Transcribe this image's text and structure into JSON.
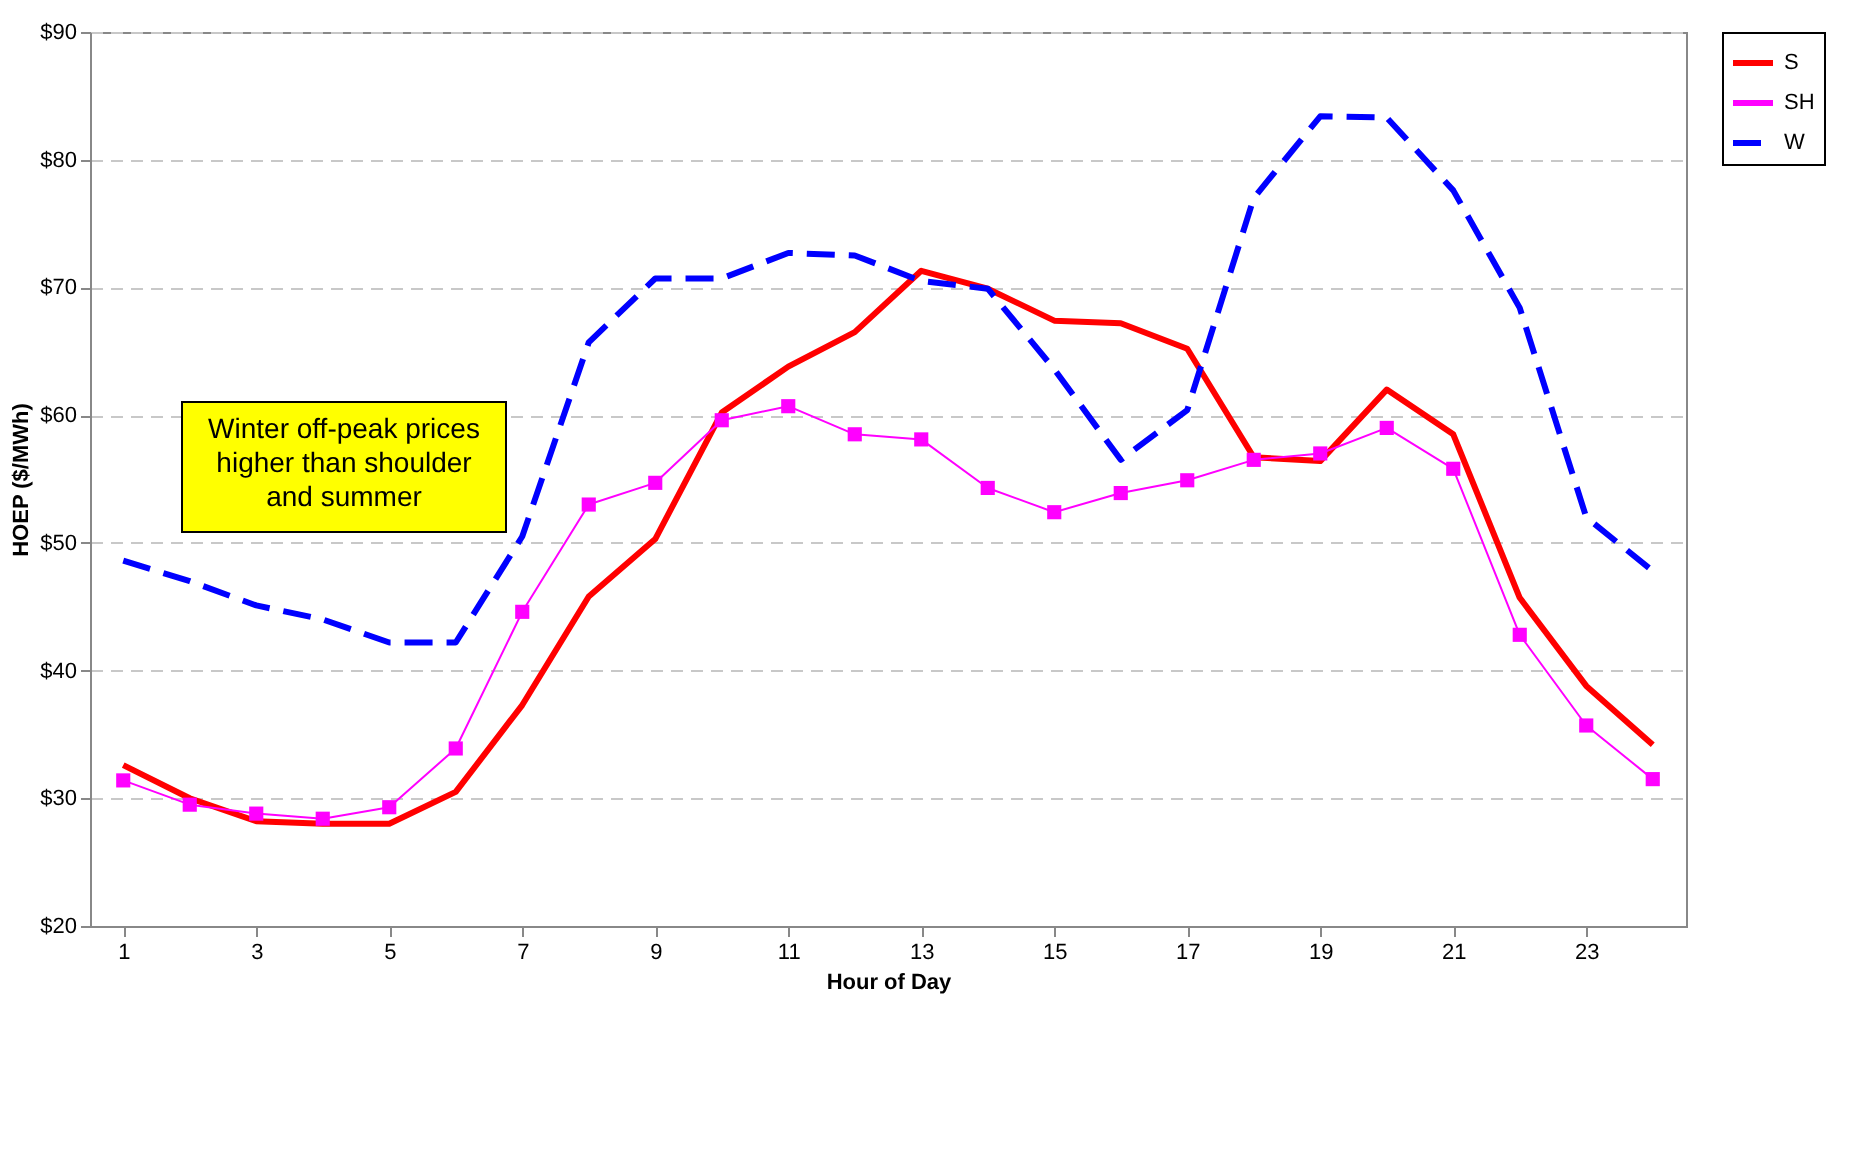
{
  "chart_data": {
    "type": "line",
    "xlabel": "Hour of Day",
    "ylabel": "HOEP ($/MWh)",
    "x": [
      1,
      2,
      3,
      4,
      5,
      6,
      7,
      8,
      9,
      10,
      11,
      12,
      13,
      14,
      15,
      16,
      17,
      18,
      19,
      20,
      21,
      22,
      23,
      24
    ],
    "xlim": [
      0.5,
      24.5
    ],
    "xticks": [
      1,
      3,
      5,
      7,
      9,
      11,
      13,
      15,
      17,
      19,
      21,
      23
    ],
    "series": [
      {
        "name": "S",
        "color": "#ff0000",
        "line_style": "solid",
        "marker": "none",
        "values": [
          32.6,
          30.0,
          28.2,
          28.0,
          28.0,
          30.5,
          37.3,
          45.8,
          50.3,
          60.2,
          63.8,
          66.5,
          71.3,
          69.9,
          67.4,
          67.2,
          65.2,
          56.7,
          56.4,
          62.0,
          58.5,
          45.7,
          38.8,
          34.2
        ]
      },
      {
        "name": "SH",
        "color": "#ff00ff",
        "line_style": "solid",
        "marker": "square",
        "values": [
          31.4,
          29.5,
          28.8,
          28.4,
          29.3,
          33.9,
          44.6,
          53.0,
          54.7,
          59.6,
          60.7,
          58.5,
          58.1,
          54.3,
          52.4,
          53.9,
          54.9,
          56.5,
          57.0,
          59.0,
          55.8,
          42.8,
          35.7,
          31.5
        ]
      },
      {
        "name": "W",
        "color": "#0000ff",
        "line_style": "dashed",
        "marker": "none",
        "values": [
          48.6,
          47.0,
          45.1,
          44.0,
          42.2,
          42.2,
          50.5,
          65.7,
          70.7,
          70.7,
          72.7,
          72.5,
          70.5,
          69.9,
          63.6,
          56.5,
          60.4,
          77.0,
          83.4,
          83.3,
          77.6,
          68.4,
          52.0,
          47.8
        ]
      }
    ],
    "ylim": [
      20,
      90
    ],
    "yticks": [
      {
        "value": 20,
        "label": "$20"
      },
      {
        "value": 30,
        "label": "$30"
      },
      {
        "value": 40,
        "label": "$40"
      },
      {
        "value": 50,
        "label": "$50"
      },
      {
        "value": 60,
        "label": "$60"
      },
      {
        "value": 70,
        "label": "$70"
      },
      {
        "value": 80,
        "label": "$80"
      },
      {
        "value": 90,
        "label": "$90"
      }
    ],
    "grid": "y",
    "legend": "right",
    "annotations": [
      "Winter off-peak prices\nhigher than shoulder\nand summer"
    ]
  }
}
